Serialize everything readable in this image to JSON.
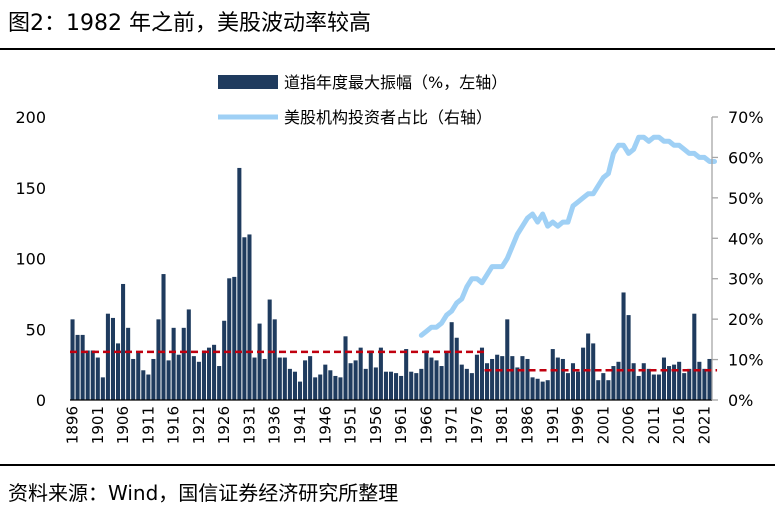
{
  "header": {
    "title": "图2：1982 年之前，美股波动率较高"
  },
  "footer": {
    "source": "资料来源：Wind，国信证券经济研究所整理"
  },
  "colors": {
    "bar": "#1f3b5e",
    "line": "#9fd0f5",
    "dashed": "#c0000f",
    "axis": "#a6a6a6"
  },
  "chart_data": {
    "type": "bar",
    "title": "",
    "xlabel": "",
    "ylabel": "",
    "legend_position": "top",
    "grid": false,
    "x_tick_labels": [
      "1896",
      "1901",
      "1906",
      "1911",
      "1916",
      "1921",
      "1926",
      "1931",
      "1936",
      "1941",
      "1946",
      "1951",
      "1956",
      "1961",
      "1966",
      "1971",
      "1976",
      "1981",
      "1986",
      "1991",
      "1996",
      "2001",
      "2006",
      "2011",
      "2016",
      "2021"
    ],
    "y_left": {
      "lim": [
        0,
        200
      ],
      "ticks": [
        "0",
        "50",
        "100",
        "150",
        "200"
      ]
    },
    "y_right": {
      "lim": [
        0,
        70
      ],
      "ticks": [
        "0%",
        "10%",
        "20%",
        "30%",
        "40%",
        "50%",
        "60%",
        "70%"
      ]
    },
    "series": [
      {
        "name": "道指年度最大振幅（%，左轴）",
        "type": "bar",
        "axis": "left",
        "x_start": 1896,
        "values": [
          57,
          46,
          46,
          35,
          35,
          30,
          16,
          61,
          58,
          40,
          82,
          51,
          29,
          34,
          21,
          18,
          29,
          57,
          89,
          28,
          51,
          32,
          51,
          64,
          31,
          27,
          35,
          37,
          39,
          24,
          56,
          86,
          87,
          164,
          115,
          117,
          30,
          54,
          29,
          71,
          57,
          30,
          30,
          22,
          20,
          13,
          28,
          31,
          16,
          18,
          25,
          21,
          17,
          16,
          45,
          26,
          28,
          37,
          22,
          35,
          23,
          37,
          20,
          20,
          19,
          17,
          36,
          20,
          19,
          22,
          35,
          30,
          28,
          24,
          34,
          55,
          44,
          25,
          22,
          19,
          32,
          37,
          26,
          29,
          32,
          31,
          57,
          31,
          23,
          31,
          29,
          16,
          15,
          13,
          14,
          36,
          30,
          29,
          19,
          26,
          20,
          37,
          47,
          40,
          14,
          19,
          14,
          24,
          27,
          76,
          60,
          26,
          17,
          26,
          22,
          18,
          18,
          30,
          24,
          25,
          27,
          19,
          22,
          61,
          27,
          22,
          29
        ]
      },
      {
        "name": "美股机构投资者占比（右轴）",
        "type": "line",
        "axis": "right",
        "points": [
          [
            1965,
            16
          ],
          [
            1966,
            17
          ],
          [
            1967,
            18
          ],
          [
            1968,
            18
          ],
          [
            1969,
            19
          ],
          [
            1970,
            21
          ],
          [
            1971,
            22
          ],
          [
            1972,
            24
          ],
          [
            1973,
            25
          ],
          [
            1974,
            28
          ],
          [
            1975,
            30
          ],
          [
            1976,
            30
          ],
          [
            1977,
            29
          ],
          [
            1978,
            31
          ],
          [
            1979,
            33
          ],
          [
            1980,
            33
          ],
          [
            1981,
            33
          ],
          [
            1982,
            35
          ],
          [
            1983,
            38
          ],
          [
            1984,
            41
          ],
          [
            1985,
            43
          ],
          [
            1986,
            45
          ],
          [
            1987,
            46
          ],
          [
            1988,
            44
          ],
          [
            1989,
            46
          ],
          [
            1990,
            43
          ],
          [
            1991,
            44
          ],
          [
            1992,
            43
          ],
          [
            1993,
            44
          ],
          [
            1994,
            44
          ],
          [
            1995,
            48
          ],
          [
            1996,
            49
          ],
          [
            1997,
            50
          ],
          [
            1998,
            51
          ],
          [
            1999,
            51
          ],
          [
            2000,
            53
          ],
          [
            2001,
            55
          ],
          [
            2002,
            56
          ],
          [
            2003,
            61
          ],
          [
            2004,
            63
          ],
          [
            2005,
            63
          ],
          [
            2006,
            61
          ],
          [
            2007,
            62
          ],
          [
            2008,
            65
          ],
          [
            2009,
            65
          ],
          [
            2010,
            64
          ],
          [
            2011,
            65
          ],
          [
            2012,
            65
          ],
          [
            2013,
            64
          ],
          [
            2014,
            64
          ],
          [
            2015,
            63
          ],
          [
            2016,
            63
          ],
          [
            2017,
            62
          ],
          [
            2018,
            61
          ],
          [
            2019,
            61
          ],
          [
            2020,
            60
          ],
          [
            2021,
            60
          ],
          [
            2022,
            59
          ],
          [
            2023,
            59
          ]
        ]
      }
    ],
    "reference_lines": [
      {
        "axis": "left",
        "x_from": 1896,
        "x_to": 1977,
        "y": 34
      },
      {
        "axis": "left",
        "x_from": 1978,
        "x_to": 2023,
        "y": 21
      }
    ]
  }
}
